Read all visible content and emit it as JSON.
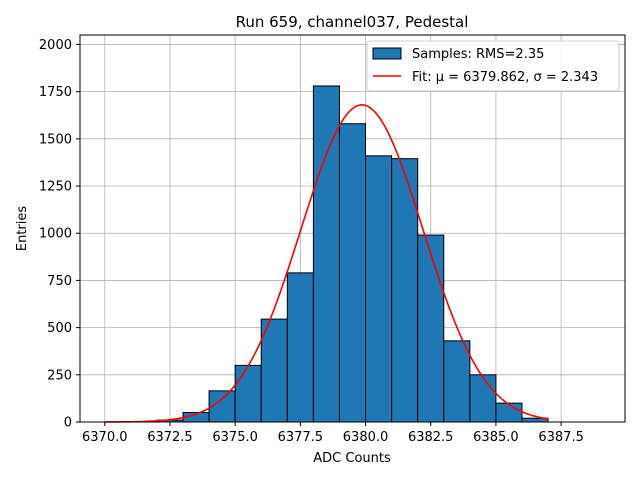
{
  "chart_data": {
    "type": "bar",
    "title": "Run 659, channel037, Pedestal",
    "xlabel": "ADC Counts",
    "ylabel": "Entries",
    "xlim": [
      6369.05,
      6389.95
    ],
    "ylim": [
      0,
      2050
    ],
    "xticks": [
      6370.0,
      6372.5,
      6375.0,
      6377.5,
      6380.0,
      6382.5,
      6385.0,
      6387.5
    ],
    "xtick_labels": [
      "6370.0",
      "6372.5",
      "6375.0",
      "6377.5",
      "6380.0",
      "6382.5",
      "6385.0",
      "6387.5"
    ],
    "yticks": [
      0,
      250,
      500,
      750,
      1000,
      1250,
      1500,
      1750,
      2000
    ],
    "ytick_labels": [
      "0",
      "250",
      "500",
      "750",
      "1000",
      "1250",
      "1500",
      "1750",
      "2000"
    ],
    "grid": true,
    "legend_position": "top-right",
    "histogram": {
      "name": "Samples: RMS=2.35",
      "color": "#1f77b4",
      "edge_color": "#000000",
      "bins": [
        {
          "x0": 6370,
          "x1": 6371,
          "value": 0
        },
        {
          "x0": 6371,
          "x1": 6372,
          "value": 2
        },
        {
          "x0": 6372,
          "x1": 6373,
          "value": 10
        },
        {
          "x0": 6373,
          "x1": 6374,
          "value": 50
        },
        {
          "x0": 6374,
          "x1": 6375,
          "value": 165
        },
        {
          "x0": 6375,
          "x1": 6376,
          "value": 300
        },
        {
          "x0": 6376,
          "x1": 6377,
          "value": 545
        },
        {
          "x0": 6377,
          "x1": 6378,
          "value": 790
        },
        {
          "x0": 6378,
          "x1": 6379,
          "value": 1780
        },
        {
          "x0": 6379,
          "x1": 6380,
          "value": 1580
        },
        {
          "x0": 6380,
          "x1": 6381,
          "value": 1410
        },
        {
          "x0": 6381,
          "x1": 6382,
          "value": 1395
        },
        {
          "x0": 6382,
          "x1": 6383,
          "value": 990
        },
        {
          "x0": 6383,
          "x1": 6384,
          "value": 430
        },
        {
          "x0": 6384,
          "x1": 6385,
          "value": 250
        },
        {
          "x0": 6385,
          "x1": 6386,
          "value": 100
        },
        {
          "x0": 6386,
          "x1": 6387,
          "value": 20
        },
        {
          "x0": 6387,
          "x1": 6388,
          "value": 0
        },
        {
          "x0": 6388,
          "x1": 6389,
          "value": 0
        }
      ]
    },
    "fit": {
      "name": "Fit: μ = 6379.862, σ = 2.343",
      "color": "#ff0000",
      "mu": 6379.862,
      "sigma": 2.343,
      "amplitude": 1680,
      "x_range": [
        6370,
        6387
      ]
    }
  }
}
